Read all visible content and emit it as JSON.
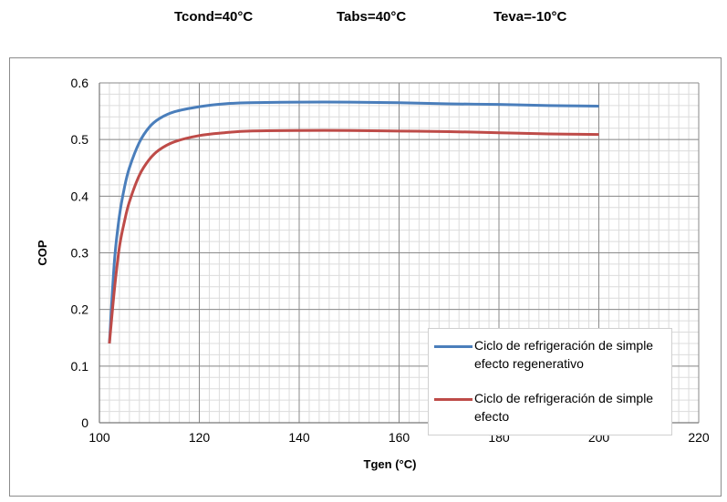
{
  "header": {
    "tcond": "Tcond=40°C",
    "tabs": "Tabs=40°C",
    "teva": "Teva=-10°C"
  },
  "chart_data": {
    "type": "line",
    "title": "",
    "xlabel": "Tgen (°C)",
    "ylabel": "COP",
    "xlim": [
      100,
      220
    ],
    "ylim": [
      0,
      0.6
    ],
    "x_ticks": [
      100,
      120,
      140,
      160,
      180,
      200,
      220
    ],
    "y_ticks": [
      0,
      0.1,
      0.2,
      0.3,
      0.4,
      0.5,
      0.6
    ],
    "grid": true,
    "legend_position": "right",
    "series": [
      {
        "name": "Ciclo de refrigeración de simple efecto regenerativo",
        "color": "#4a7ebb",
        "x": [
          102,
          103,
          104,
          105,
          106,
          108,
          110,
          112,
          115,
          120,
          125,
          130,
          140,
          150,
          160,
          170,
          180,
          190,
          200
        ],
        "y": [
          0.14,
          0.285,
          0.365,
          0.415,
          0.45,
          0.495,
          0.522,
          0.537,
          0.549,
          0.558,
          0.563,
          0.565,
          0.566,
          0.566,
          0.565,
          0.563,
          0.562,
          0.56,
          0.559
        ]
      },
      {
        "name": "Ciclo de refrigeración de simple efecto",
        "color": "#be4b48",
        "x": [
          102,
          103,
          104,
          105,
          106,
          108,
          110,
          112,
          115,
          120,
          125,
          130,
          140,
          150,
          160,
          170,
          180,
          190,
          200
        ],
        "y": [
          0.14,
          0.235,
          0.31,
          0.355,
          0.39,
          0.437,
          0.465,
          0.482,
          0.496,
          0.507,
          0.512,
          0.515,
          0.516,
          0.516,
          0.515,
          0.514,
          0.512,
          0.51,
          0.509
        ]
      }
    ]
  }
}
